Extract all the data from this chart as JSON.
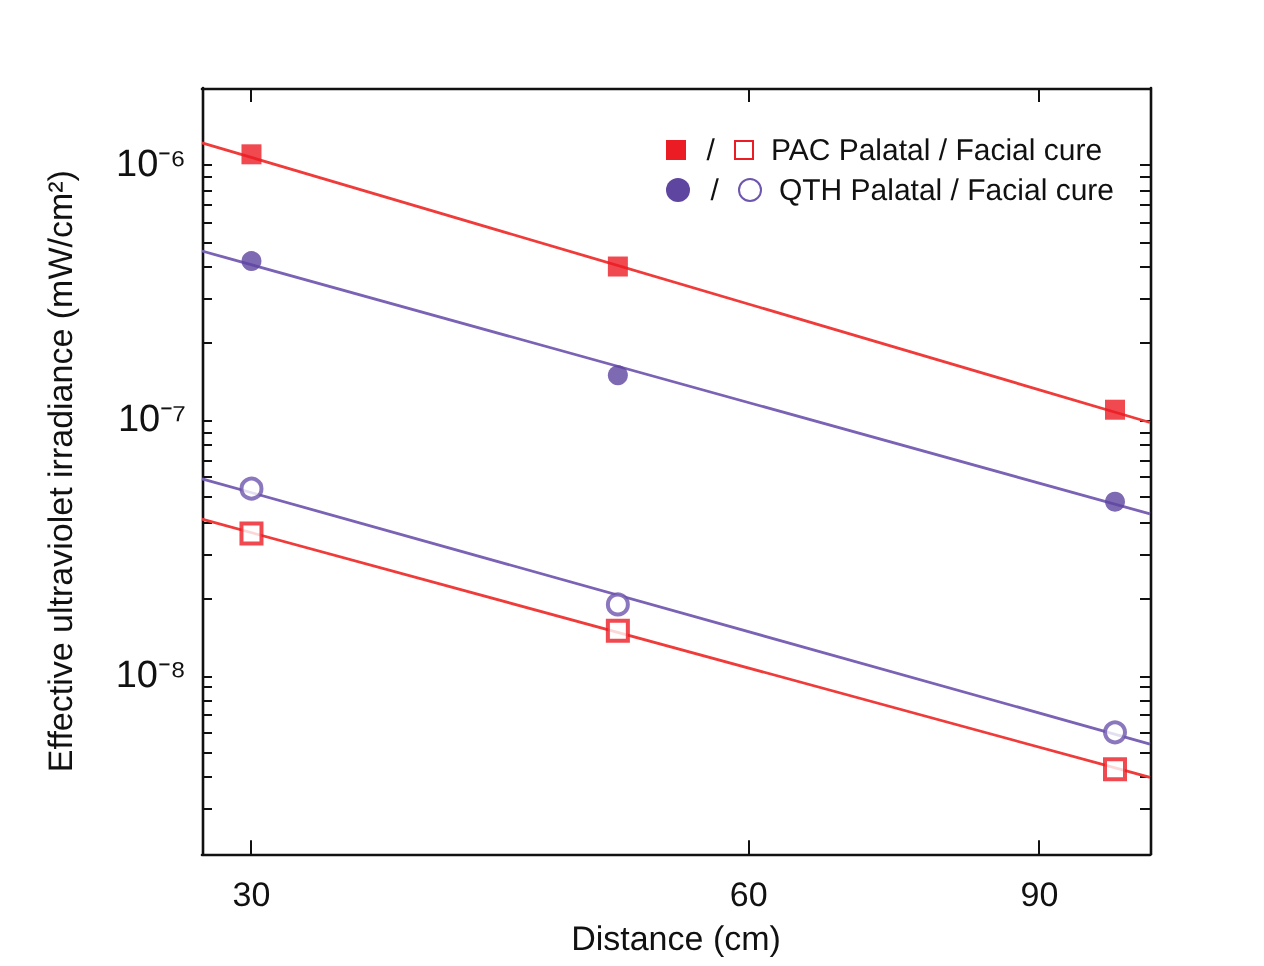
{
  "chart_data": {
    "type": "scatter",
    "xlabel": "Distance (cm)",
    "ylabel": "Effective ultraviolet irradiance (mW/cm²)",
    "log": "xy",
    "xlim": [
      28,
      105
    ],
    "xticks": [
      30,
      60,
      90
    ],
    "ylim": [
      2e-09,
      2e-06
    ],
    "yticks": [
      {
        "value": 1e-08,
        "label": "10⁻⁸"
      },
      {
        "value": 1e-07,
        "label": "10⁻⁷"
      },
      {
        "value": 1e-06,
        "label": "10⁻⁶"
      }
    ],
    "grid": false,
    "legend": "top right",
    "annotations": [
      "/",
      "/"
    ],
    "series": [
      {
        "name": "PAC Palatal / Facial cure",
        "color": "#ec1c24",
        "marker": "square",
        "x": [
          30,
          50,
          100
        ],
        "values": [
          1.1e-06,
          4e-07,
          1.1e-07
        ]
      },
      {
        "color": "#ec1c24",
        "marker": "square",
        "x": [
          30,
          50,
          100
        ],
        "values": [
          3.6e-08,
          1.5e-08,
          4.3e-09
        ]
      },
      {
        "name": "QTH Palatal / Facial cure",
        "color": "#5e45a0",
        "marker": "circle",
        "x": [
          30,
          50,
          100
        ],
        "values": [
          4.2e-07,
          1.5e-07,
          4.8e-08
        ]
      },
      {
        "color": "#6e55ad",
        "marker": "circle",
        "x": [
          30,
          50,
          100
        ],
        "values": [
          5.4e-08,
          1.9e-08,
          6e-09
        ]
      },
      {
        "type": "line",
        "color": "#ef3b3a",
        "marker": "none",
        "line_style": "solid",
        "x": [
          28,
          105
        ],
        "values": [
          1.22e-06,
          9.8e-08
        ]
      },
      {
        "type": "line",
        "color": "#7a62b5",
        "marker": "none",
        "line_style": "solid",
        "x": [
          28,
          105
        ],
        "values": [
          4.6e-07,
          4.3e-08
        ]
      },
      {
        "type": "line",
        "color": "#7a62b5",
        "marker": "none",
        "line_style": "solid",
        "x": [
          28,
          105
        ],
        "values": [
          5.9e-08,
          5.4e-09
        ]
      },
      {
        "type": "line",
        "color": "#ef3b3a",
        "marker": "none",
        "line_style": "solid",
        "x": [
          28,
          105
        ],
        "values": [
          4.1e-08,
          4e-09
        ]
      }
    ]
  }
}
